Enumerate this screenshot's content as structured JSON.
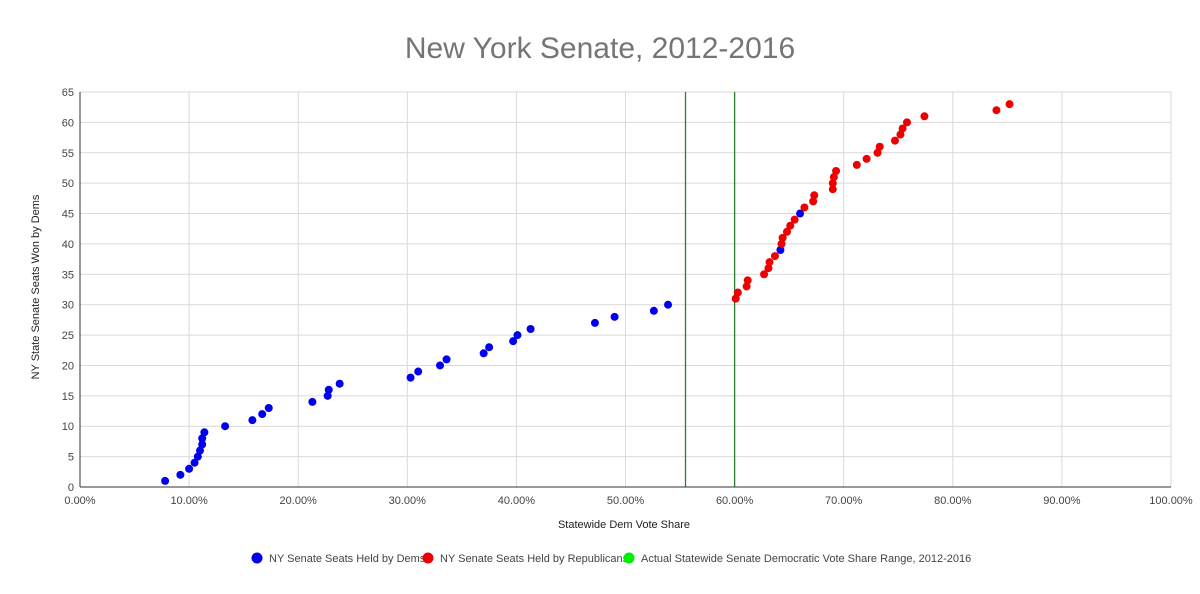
{
  "chart_data": {
    "type": "scatter",
    "title": "New York Senate, 2012-2016",
    "xlabel": "Statewide Dem Vote Share",
    "ylabel": "NY State Senate Seats Won by Dems",
    "xlim": [
      0,
      1
    ],
    "ylim": [
      0,
      65
    ],
    "x_ticks": [
      "0.00%",
      "10.00%",
      "20.00%",
      "30.00%",
      "40.00%",
      "50.00%",
      "60.00%",
      "70.00%",
      "80.00%",
      "90.00%",
      "100.00%"
    ],
    "y_ticks": [
      "0",
      "5",
      "10",
      "15",
      "20",
      "25",
      "30",
      "35",
      "40",
      "45",
      "50",
      "55",
      "60",
      "65"
    ],
    "grid": true,
    "legend_position": "bottom",
    "series": [
      {
        "name": "NY Senate Seats Held by Dems",
        "color": "#0000ee",
        "points": [
          [
            0.078,
            1
          ],
          [
            0.092,
            2
          ],
          [
            0.1,
            3
          ],
          [
            0.105,
            4
          ],
          [
            0.108,
            5
          ],
          [
            0.11,
            6
          ],
          [
            0.112,
            7
          ],
          [
            0.112,
            8
          ],
          [
            0.114,
            9
          ],
          [
            0.133,
            10
          ],
          [
            0.158,
            11
          ],
          [
            0.167,
            12
          ],
          [
            0.173,
            13
          ],
          [
            0.213,
            14
          ],
          [
            0.227,
            15
          ],
          [
            0.228,
            16
          ],
          [
            0.238,
            17
          ],
          [
            0.303,
            18
          ],
          [
            0.31,
            19
          ],
          [
            0.33,
            20
          ],
          [
            0.336,
            21
          ],
          [
            0.37,
            22
          ],
          [
            0.375,
            23
          ],
          [
            0.397,
            24
          ],
          [
            0.401,
            25
          ],
          [
            0.413,
            26
          ],
          [
            0.472,
            27
          ],
          [
            0.49,
            28
          ],
          [
            0.526,
            29
          ],
          [
            0.539,
            30
          ],
          [
            0.642,
            39
          ],
          [
            0.66,
            45
          ]
        ]
      },
      {
        "name": "NY Senate Seats Held by Republicans",
        "color": "#ee0000",
        "points": [
          [
            0.601,
            31
          ],
          [
            0.603,
            32
          ],
          [
            0.611,
            33
          ],
          [
            0.612,
            34
          ],
          [
            0.627,
            35
          ],
          [
            0.631,
            36
          ],
          [
            0.632,
            37
          ],
          [
            0.637,
            38
          ],
          [
            0.643,
            40
          ],
          [
            0.644,
            41
          ],
          [
            0.648,
            42
          ],
          [
            0.651,
            43
          ],
          [
            0.655,
            44
          ],
          [
            0.664,
            46
          ],
          [
            0.672,
            47
          ],
          [
            0.673,
            48
          ],
          [
            0.69,
            49
          ],
          [
            0.69,
            50
          ],
          [
            0.691,
            51
          ],
          [
            0.693,
            52
          ],
          [
            0.712,
            53
          ],
          [
            0.721,
            54
          ],
          [
            0.731,
            55
          ],
          [
            0.733,
            56
          ],
          [
            0.747,
            57
          ],
          [
            0.752,
            58
          ],
          [
            0.754,
            59
          ],
          [
            0.758,
            60
          ],
          [
            0.774,
            61
          ],
          [
            0.84,
            62
          ],
          [
            0.852,
            63
          ]
        ]
      },
      {
        "name": "Actual Statewide Senate Democratic Vote Share Range, 2012-2016",
        "color": "#00ee00",
        "vlines": [
          0.555,
          0.6
        ],
        "line_color": "#2e7d32"
      }
    ]
  }
}
